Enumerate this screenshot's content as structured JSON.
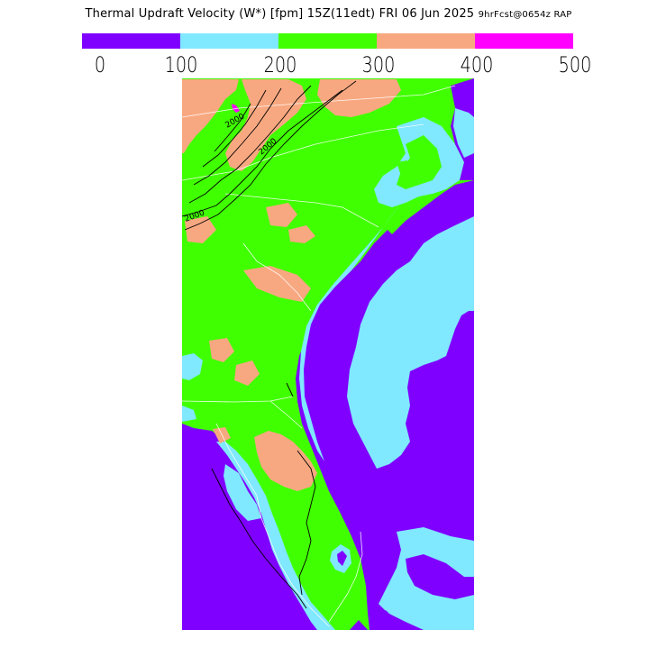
{
  "title": {
    "main": "Thermal Updraft Velocity (W*) [fpm] 15Z(11edt) FRI 06 Jun 2025",
    "forecast": "9hrFcst@0654z RAP"
  },
  "legend": {
    "segments": [
      {
        "range": "0-100",
        "color": "#7f00ff"
      },
      {
        "range": "100-200",
        "color": "#80e8ff"
      },
      {
        "range": "200-300",
        "color": "#40ff00"
      },
      {
        "range": "300-400",
        "color": "#f8a880"
      },
      {
        "range": "400-500",
        "color": "#ff00ff"
      }
    ],
    "ticks": [
      "0",
      "100",
      "200",
      "300",
      "400",
      "500"
    ]
  },
  "map": {
    "contour_labels": [
      "2000",
      "2000",
      "2000"
    ],
    "colors": {
      "purple": "#7f00ff",
      "cyan": "#80e8ff",
      "green": "#40ff00",
      "salmon": "#f8a880",
      "magenta": "#ff00ff"
    }
  }
}
